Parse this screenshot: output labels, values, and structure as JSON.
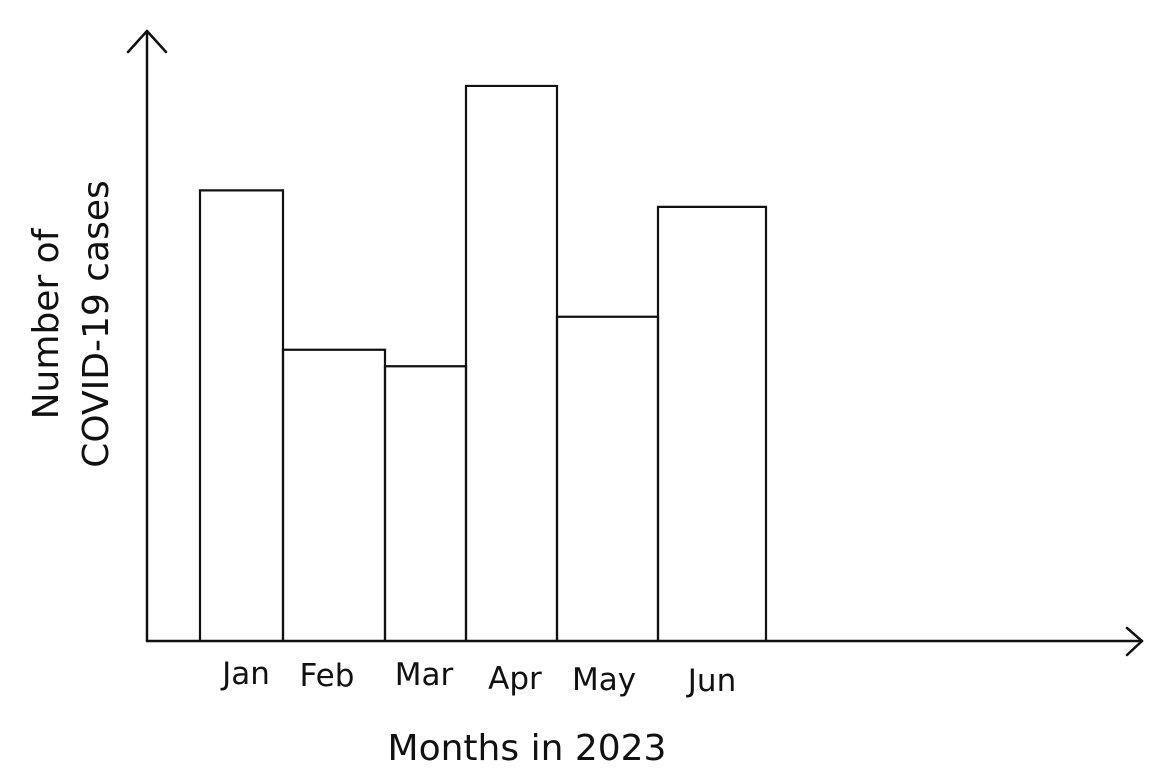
{
  "chart_data": {
    "type": "bar",
    "title": "",
    "xlabel": "Months in 2023",
    "ylabel_lines": [
      "Number of",
      "COVID-19 cases"
    ],
    "categories": [
      "Jan",
      "Feb",
      "Mar",
      "Apr",
      "May",
      "Jun"
    ],
    "values": [
      82,
      53,
      50,
      101,
      59,
      79
    ],
    "ylim": [
      0,
      111
    ],
    "grid": false,
    "legend": "none",
    "y_ticks": "none",
    "bar_fill": "none",
    "stroke_color": "#111111"
  }
}
